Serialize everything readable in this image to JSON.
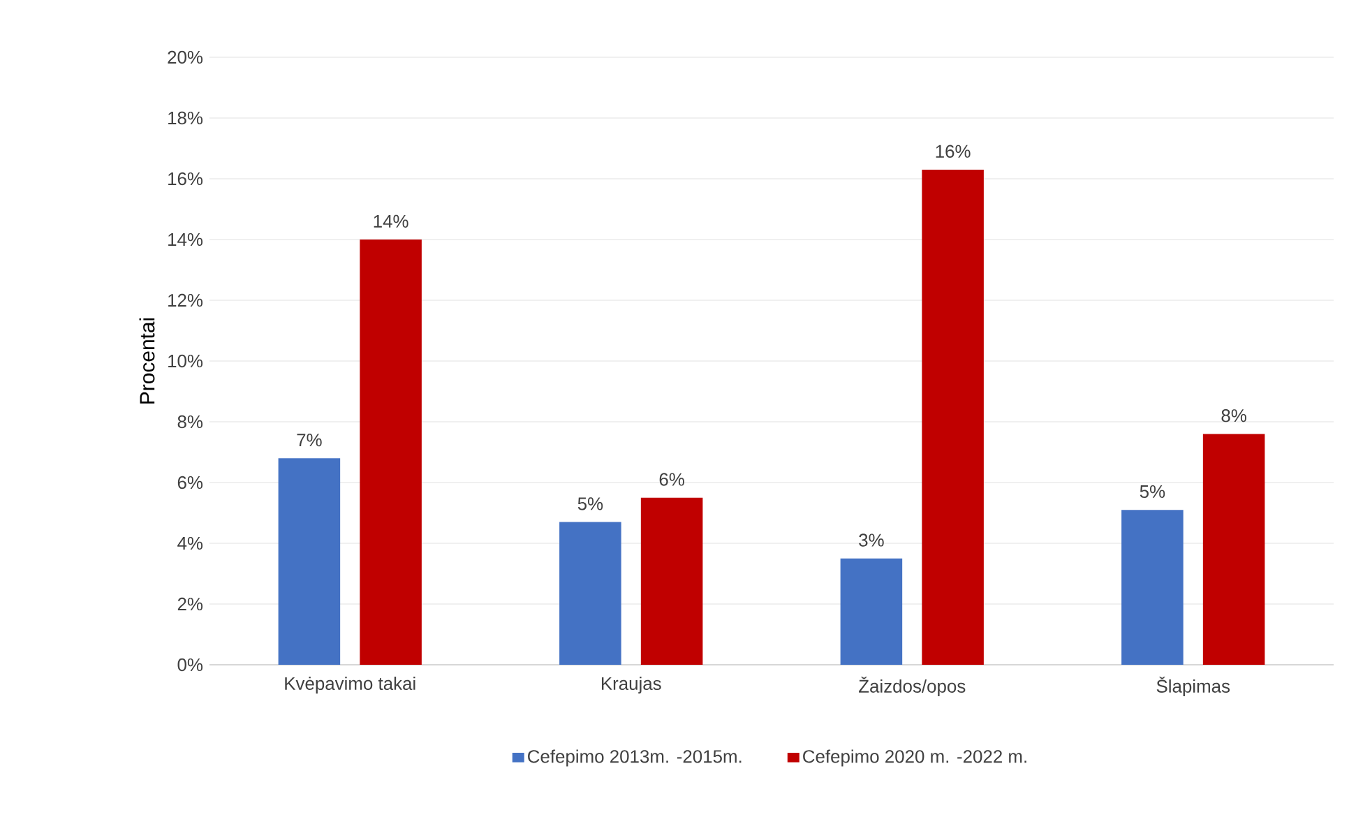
{
  "chart_data": {
    "type": "bar",
    "ylabel": "Procentai",
    "categories": [
      "Kvėpavimo takai",
      "Kraujas",
      "Žaizdos/opos",
      "Šlapimas"
    ],
    "series": [
      {
        "name": "Cefepimo 2013m. -2015m.",
        "color": "#4472c4",
        "values": [
          6.8,
          4.7,
          3.5,
          5.1
        ],
        "value_labels": [
          "7%",
          "5%",
          "3%",
          "5%"
        ]
      },
      {
        "name": "Cefepimo 2020 m. -2022 m.",
        "color": "#c00000",
        "values": [
          14.0,
          5.5,
          16.3,
          7.6
        ],
        "value_labels": [
          "14%",
          "6%",
          "16%",
          "8%"
        ]
      }
    ],
    "ylim": [
      0,
      20
    ],
    "yticks": [
      {
        "value": 0,
        "label": "0%"
      },
      {
        "value": 2,
        "label": "2%"
      },
      {
        "value": 4,
        "label": "4%"
      },
      {
        "value": 6,
        "label": "6%"
      },
      {
        "value": 8,
        "label": "8%"
      },
      {
        "value": 10,
        "label": "10%"
      },
      {
        "value": 12,
        "label": "12%"
      },
      {
        "value": 14,
        "label": "14%"
      },
      {
        "value": 16,
        "label": "16%"
      },
      {
        "value": 18,
        "label": "18%"
      },
      {
        "value": 20,
        "label": "20%"
      }
    ],
    "grid": "y",
    "legend": "bottom"
  }
}
